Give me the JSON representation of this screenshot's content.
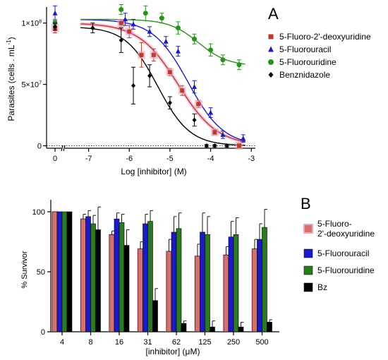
{
  "panel_a": {
    "letter": "A",
    "ylabel_parts": [
      "Parasites (cells . mL",
      "-1",
      ")"
    ],
    "xlabel": "Log [inhibitor] (M)"
  },
  "panel_b": {
    "letter": "B",
    "ylabel": "% Survivor",
    "xlabel_parts": [
      "[inhibitor] (",
      "μ",
      "M)"
    ]
  },
  "chart_data": [
    {
      "type": "scatter",
      "panel": "A",
      "title": "",
      "ylabel": "Parasites (cells . mL-1)",
      "xlabel": "Log [inhibitor] (M)",
      "xlim": [
        -7.6,
        -2.9
      ],
      "ylim": [
        -2000000,
        113000000
      ],
      "x_ticks": [
        {
          "value": -7,
          "label": "-7"
        },
        {
          "value": -6,
          "label": "-6"
        },
        {
          "value": -5,
          "label": "-5"
        },
        {
          "value": -4,
          "label": "-4"
        },
        {
          "value": -3,
          "label": "-3"
        }
      ],
      "y_ticks": [
        {
          "value": 0,
          "label": "0"
        },
        {
          "value": 50000000,
          "label": "5×10",
          "sup": "7"
        },
        {
          "value": 100000000,
          "label": "1×10",
          "sup": "8"
        }
      ],
      "control_point_label": "0",
      "control_dotted_line_at": 0,
      "legend_position": "right",
      "series": [
        {
          "name": "5-Fluoro-2'-deoxyuridine",
          "color": "#c0392b",
          "marker": "square",
          "halo": "#e8a6c8",
          "control": {
            "y": 96000000,
            "err": 4000000
          },
          "fit": {
            "top": 100000000,
            "bottom": 0,
            "log_ic50": -4.8,
            "hill": 0.9
          },
          "points": [
            {
              "x": -6.2,
              "y": 100000000,
              "err": 3000000
            },
            {
              "x": -6.0,
              "y": 93000000,
              "err": 5000000
            },
            {
              "x": -5.7,
              "y": 74000000,
              "err": 10000000
            },
            {
              "x": -5.4,
              "y": 74000000,
              "err": 5000000
            },
            {
              "x": -5.0,
              "y": 60000000,
              "err": 3000000
            },
            {
              "x": -4.7,
              "y": 45000000,
              "err": 4000000
            },
            {
              "x": -4.3,
              "y": 34000000,
              "err": 3000000
            },
            {
              "x": -3.9,
              "y": 11000000,
              "err": 2000000
            },
            {
              "x": -3.3,
              "y": 0,
              "err": 2000000
            }
          ]
        },
        {
          "name": "5-Fluorouracil",
          "color": "#1a1acc",
          "marker": "triangle",
          "control": {
            "y": 108000000,
            "err": 6000000
          },
          "fit": {
            "top": 103000000,
            "bottom": 0,
            "log_ic50": -4.55,
            "hill": 1.0
          },
          "points": [
            {
              "x": -6.1,
              "y": 103000000,
              "err": 5000000
            },
            {
              "x": -5.9,
              "y": 99000000,
              "err": 4000000
            },
            {
              "x": -5.5,
              "y": 93000000,
              "err": 4000000
            },
            {
              "x": -5.1,
              "y": 85000000,
              "err": 4000000
            },
            {
              "x": -4.8,
              "y": 77000000,
              "err": 4000000
            },
            {
              "x": -4.4,
              "y": 48000000,
              "err": 5000000
            },
            {
              "x": -4.0,
              "y": 27000000,
              "err": 4000000
            },
            {
              "x": -3.7,
              "y": 9000000,
              "err": 3000000
            },
            {
              "x": -3.2,
              "y": 6000000,
              "err": 3000000
            }
          ]
        },
        {
          "name": "5-Fluorouridine",
          "color": "#27931b",
          "marker": "circle",
          "control": {
            "y": 100000000,
            "err": 3000000
          },
          "fit": {
            "top": 103000000,
            "bottom": 65000000,
            "log_ic50": -4.3,
            "hill": 1.2
          },
          "points": [
            {
              "x": -6.2,
              "y": 111000000,
              "err": 4000000
            },
            {
              "x": -5.6,
              "y": 108000000,
              "err": 6000000
            },
            {
              "x": -5.2,
              "y": 104000000,
              "err": 4000000
            },
            {
              "x": -4.8,
              "y": 96000000,
              "err": 5000000
            },
            {
              "x": -4.4,
              "y": 87000000,
              "err": 4000000
            },
            {
              "x": -4.0,
              "y": 78000000,
              "err": 5000000
            },
            {
              "x": -3.7,
              "y": 70000000,
              "err": 4000000
            },
            {
              "x": -3.3,
              "y": 66000000,
              "err": 4000000
            }
          ]
        },
        {
          "name": "Benznidazole",
          "color": "#000000",
          "marker": "diamond",
          "control": {
            "y": 97000000,
            "err": 3000000
          },
          "fit": {
            "top": 97000000,
            "bottom": 0,
            "log_ic50": -5.3,
            "hill": 1.1
          },
          "points": [
            {
              "x": -6.9,
              "y": 96000000,
              "err": 4000000
            },
            {
              "x": -6.2,
              "y": 86000000,
              "err": 10000000
            },
            {
              "x": -5.9,
              "y": 49000000,
              "err": 15000000
            },
            {
              "x": -5.5,
              "y": 57000000,
              "err": 9000000
            },
            {
              "x": -5.0,
              "y": 35000000,
              "err": 5000000
            },
            {
              "x": -4.4,
              "y": 21000000,
              "err": 5000000
            },
            {
              "x": -4.1,
              "y": 0,
              "err": 1000000
            },
            {
              "x": -3.9,
              "y": 0,
              "err": 1000000
            },
            {
              "x": -3.6,
              "y": 0,
              "err": 1000000
            }
          ]
        }
      ]
    },
    {
      "type": "bar",
      "panel": "B",
      "title": "",
      "ylabel": "% Survivor",
      "xlabel": "[inhibitor] (μM)",
      "ylim": [
        0,
        110
      ],
      "y_ticks": [
        0,
        50,
        100
      ],
      "categories": [
        "4",
        "8",
        "16",
        "31",
        "62",
        "125",
        "250",
        "500"
      ],
      "legend_position": "right",
      "series": [
        {
          "name": "5-Fluoro-2'-deoxyuridine",
          "legend_lines": [
            "5-Fluoro-",
            "2'-deoxyuridine"
          ],
          "color": "#d8706a",
          "halo": "#e8a6c8",
          "values": [
            100,
            94,
            81,
            69,
            67,
            63,
            64,
            69
          ],
          "errors": [
            0,
            4,
            3,
            6,
            10,
            10,
            7,
            8
          ]
        },
        {
          "name": "5-Fluorouracil",
          "color": "#1a1acc",
          "values": [
            100,
            96,
            94,
            90,
            83,
            83,
            79,
            77
          ],
          "errors": [
            0,
            5,
            5,
            8,
            13,
            16,
            13,
            13
          ]
        },
        {
          "name": "5-Fluorouridine",
          "color": "#2a7a1e",
          "values": [
            100,
            90,
            91,
            92,
            86,
            81,
            81,
            87
          ],
          "errors": [
            0,
            7,
            7,
            9,
            13,
            15,
            14,
            15
          ]
        },
        {
          "name": "Bz",
          "color": "#000000",
          "values": [
            100,
            85,
            72,
            26,
            7,
            4,
            4,
            8
          ],
          "errors": [
            0,
            19,
            13,
            10,
            2,
            5,
            4,
            2
          ]
        }
      ]
    }
  ]
}
